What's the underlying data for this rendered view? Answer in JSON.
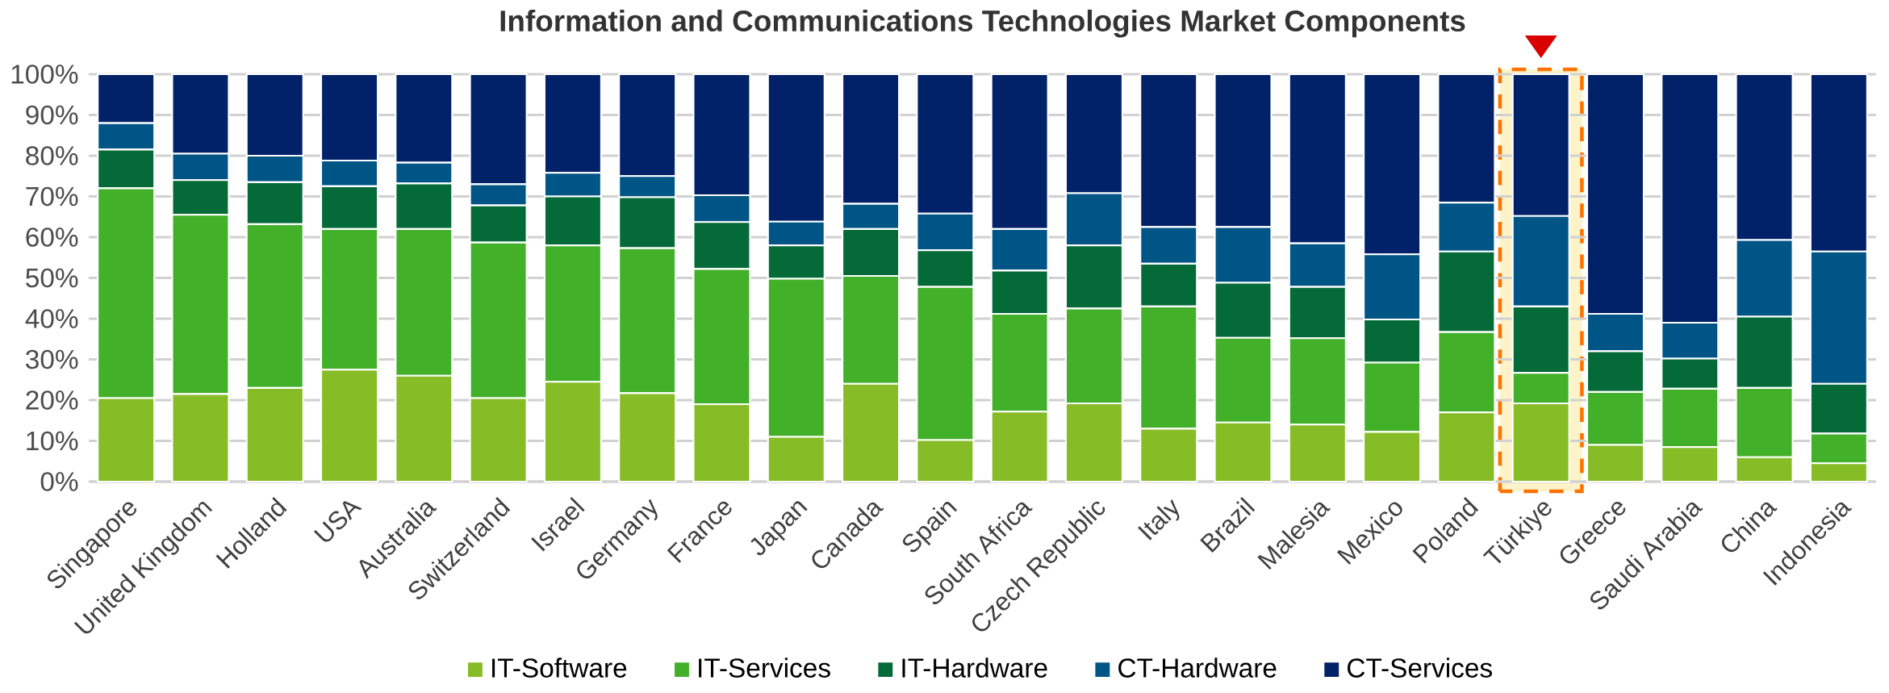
{
  "chart_data": {
    "type": "bar",
    "title": "Information and Communications Technologies Market Components",
    "categories": [
      "Singapore",
      "United Kingdom",
      "Holland",
      "USA",
      "Australia",
      "Switzerland",
      "Israel",
      "Germany",
      "France",
      "Japan",
      "Canada",
      "Spain",
      "South Africa",
      "Czech Republic",
      "Italy",
      "Brazil",
      "Malesia",
      "Mexico",
      "Poland",
      "Türkiye",
      "Greece",
      "Saudi Arabia",
      "China",
      "Indonesia"
    ],
    "stacked": true,
    "grid": "y",
    "legend": "bottom",
    "ylim": [
      0,
      100
    ],
    "yticks": [
      {
        "value": 0,
        "label": "0%"
      },
      {
        "value": 10,
        "label": "10%"
      },
      {
        "value": 20,
        "label": "20%"
      },
      {
        "value": 30,
        "label": "30%"
      },
      {
        "value": 40,
        "label": "40%"
      },
      {
        "value": 50,
        "label": "50%"
      },
      {
        "value": 60,
        "label": "60%"
      },
      {
        "value": 70,
        "label": "70%"
      },
      {
        "value": 80,
        "label": "80%"
      },
      {
        "value": 90,
        "label": "90%"
      },
      {
        "value": 100,
        "label": "100%"
      }
    ],
    "bands": [
      {
        "axis": "x",
        "from": "Türkiye",
        "to": "Türkiye",
        "color": "#fdf3c8"
      }
    ],
    "series": [
      {
        "name": "IT-Software",
        "color": "#86bc25",
        "values": [
          20.5,
          21.5,
          23,
          27.5,
          26,
          20.5,
          24.5,
          21.7,
          19,
          11,
          24,
          10.2,
          17.2,
          19.2,
          13,
          14.5,
          14,
          12.2,
          17,
          19.2,
          9,
          8.5,
          6,
          4.5
        ]
      },
      {
        "name": "IT-Services",
        "color": "#43b02a",
        "values": [
          51.5,
          44,
          40.2,
          34.5,
          36,
          38.2,
          33.5,
          35.6,
          33.2,
          38.8,
          26.5,
          37.6,
          24,
          23.3,
          30,
          20.8,
          21.2,
          17,
          19.7,
          7.5,
          13,
          14.3,
          17,
          7.3
        ]
      },
      {
        "name": "IT-Hardware",
        "color": "#046a38",
        "values": [
          9.5,
          8.5,
          10.3,
          10.5,
          11.2,
          9.1,
          12,
          12.5,
          11.5,
          8.2,
          11.5,
          9,
          10.6,
          15.5,
          10.5,
          13.5,
          12.6,
          10.6,
          19.8,
          16.3,
          10,
          7.4,
          17.5,
          12.2
        ]
      },
      {
        "name": "CT-Hardware",
        "color": "#005587",
        "values": [
          6.5,
          6.5,
          6.5,
          6.3,
          5.1,
          5.2,
          5.8,
          5.2,
          6.6,
          5.8,
          6.2,
          9,
          10.2,
          12.8,
          9,
          13.7,
          10.7,
          16,
          12,
          22.2,
          9.2,
          8.8,
          18.8,
          32.5
        ]
      },
      {
        "name": "CT-Services",
        "color": "#012169",
        "values": [
          12,
          19.5,
          20,
          21.2,
          21.7,
          27,
          24.2,
          25,
          29.7,
          36.2,
          31.8,
          34.2,
          38,
          29.2,
          37.5,
          37.5,
          41.5,
          44.2,
          31.5,
          34.8,
          58.8,
          61,
          40.7,
          43.5
        ]
      }
    ]
  }
}
